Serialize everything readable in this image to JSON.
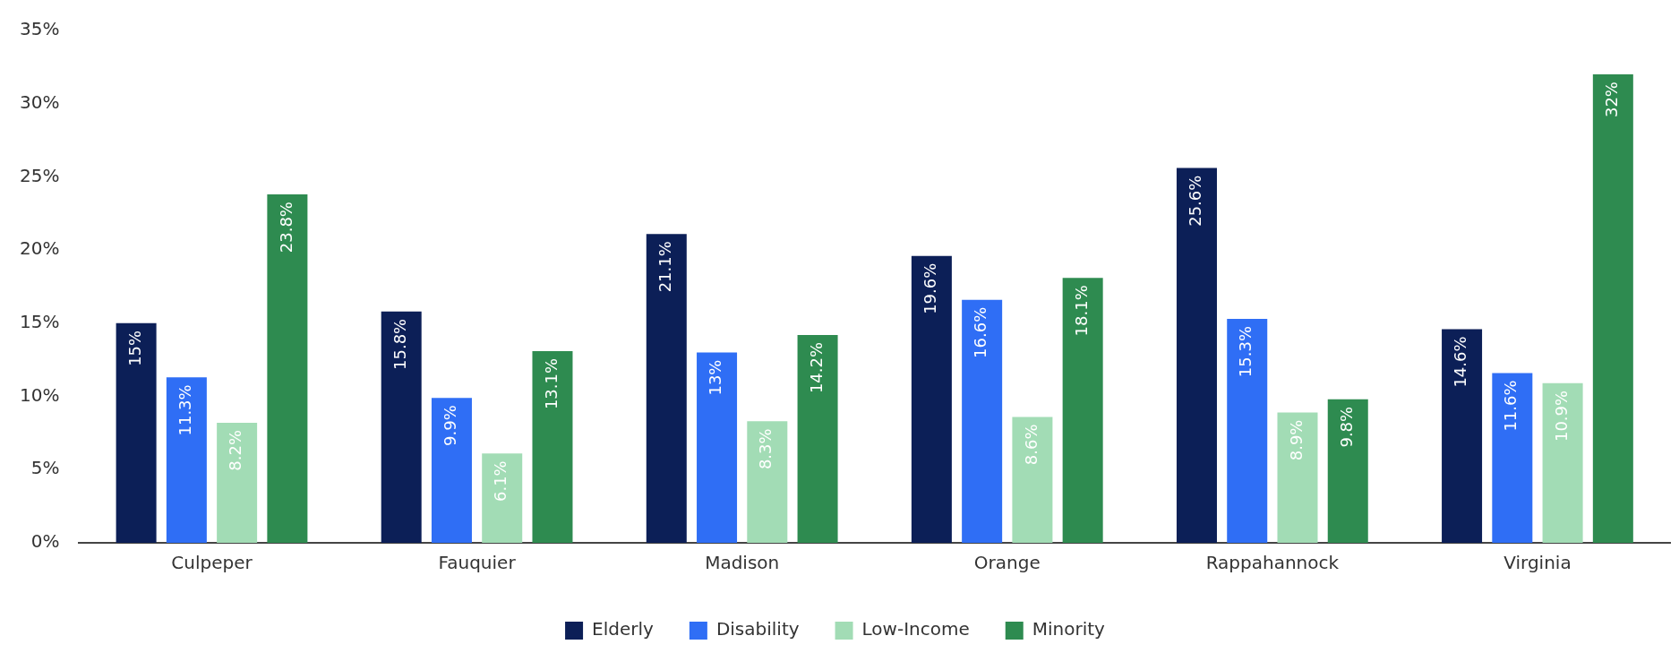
{
  "chart_data": {
    "type": "bar",
    "categories": [
      "Culpeper",
      "Fauquier",
      "Madison",
      "Orange",
      "Rappahannock",
      "Virginia"
    ],
    "series": [
      {
        "name": "Elderly",
        "color": "#0c1f57",
        "values": [
          15,
          15.8,
          21.1,
          19.6,
          25.6,
          14.6
        ],
        "value_labels": [
          "15%",
          "15.8%",
          "21.1%",
          "19.6%",
          "25.6%",
          "14.6%"
        ]
      },
      {
        "name": "Disability",
        "color": "#2f6ef5",
        "values": [
          11.3,
          9.9,
          13,
          16.6,
          15.3,
          11.6
        ],
        "value_labels": [
          "11.3%",
          "9.9%",
          "13%",
          "16.6%",
          "15.3%",
          "11.6%"
        ]
      },
      {
        "name": "Low-Income",
        "color": "#a2dcb5",
        "values": [
          8.2,
          6.1,
          8.3,
          8.6,
          8.9,
          10.9
        ],
        "value_labels": [
          "8.2%",
          "6.1%",
          "8.3%",
          "8.6%",
          "8.9%",
          "10.9%"
        ]
      },
      {
        "name": "Minority",
        "color": "#2e8b50",
        "values": [
          23.8,
          13.1,
          14.2,
          18.1,
          9.8,
          32
        ],
        "value_labels": [
          "23.8%",
          "13.1%",
          "14.2%",
          "18.1%",
          "9.8%",
          "32%"
        ]
      }
    ],
    "ylim": [
      0,
      35
    ],
    "yticks": [
      {
        "value": 0,
        "label": "0%"
      },
      {
        "value": 5,
        "label": "5%"
      },
      {
        "value": 10,
        "label": "10%"
      },
      {
        "value": 15,
        "label": "15%"
      },
      {
        "value": 20,
        "label": "20%"
      },
      {
        "value": 25,
        "label": "25%"
      },
      {
        "value": 30,
        "label": "30%"
      },
      {
        "value": 35,
        "label": "35%"
      }
    ],
    "grid": false,
    "legend": "bottom"
  }
}
